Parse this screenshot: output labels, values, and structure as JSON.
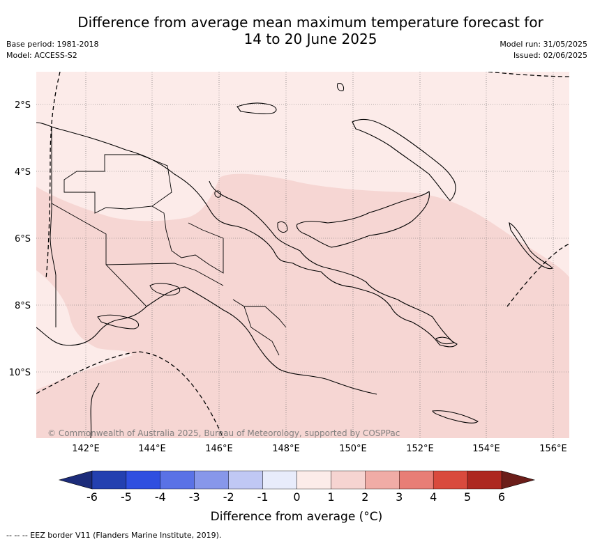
{
  "title_line1": "Difference from average mean maximum temperature forecast for",
  "title_line2": "14 to 20 June 2025",
  "meta_left": {
    "base_period": "Base period: 1981-2018",
    "model": "Model: ACCESS-S2"
  },
  "meta_right": {
    "model_run": "Model run: 31/05/2025",
    "issued": "Issued: 02/06/2025"
  },
  "map": {
    "lat_labels": [
      "2°S",
      "4°S",
      "6°S",
      "8°S",
      "10°S"
    ],
    "lon_labels": [
      "142°E",
      "144°E",
      "146°E",
      "148°E",
      "150°E",
      "152°E",
      "154°E",
      "156°E"
    ],
    "copyright": "© Commonwealth of Australia 2025, Bureau of Meteorology, supported by COSPPac"
  },
  "colorbar": {
    "ticks": [
      "-6",
      "-5",
      "-4",
      "-3",
      "-2",
      "-1",
      "0",
      "1",
      "2",
      "3",
      "4",
      "5",
      "6"
    ],
    "colors": [
      "#2340b0",
      "#2f4fe0",
      "#5a72e6",
      "#8797ea",
      "#c0c8f4",
      "#e8ecfb",
      "#fcece9",
      "#f6d4d1",
      "#f0aca6",
      "#e87e76",
      "#d94a3d",
      "#ad2820"
    ],
    "low_arrow_color": "#1c2c7a",
    "high_arrow_color": "#6b1d19",
    "label": "Difference from average (°C)"
  },
  "footer": "-- -- -- EEZ border V11 (Flanders Marine Institute, 2019)."
}
